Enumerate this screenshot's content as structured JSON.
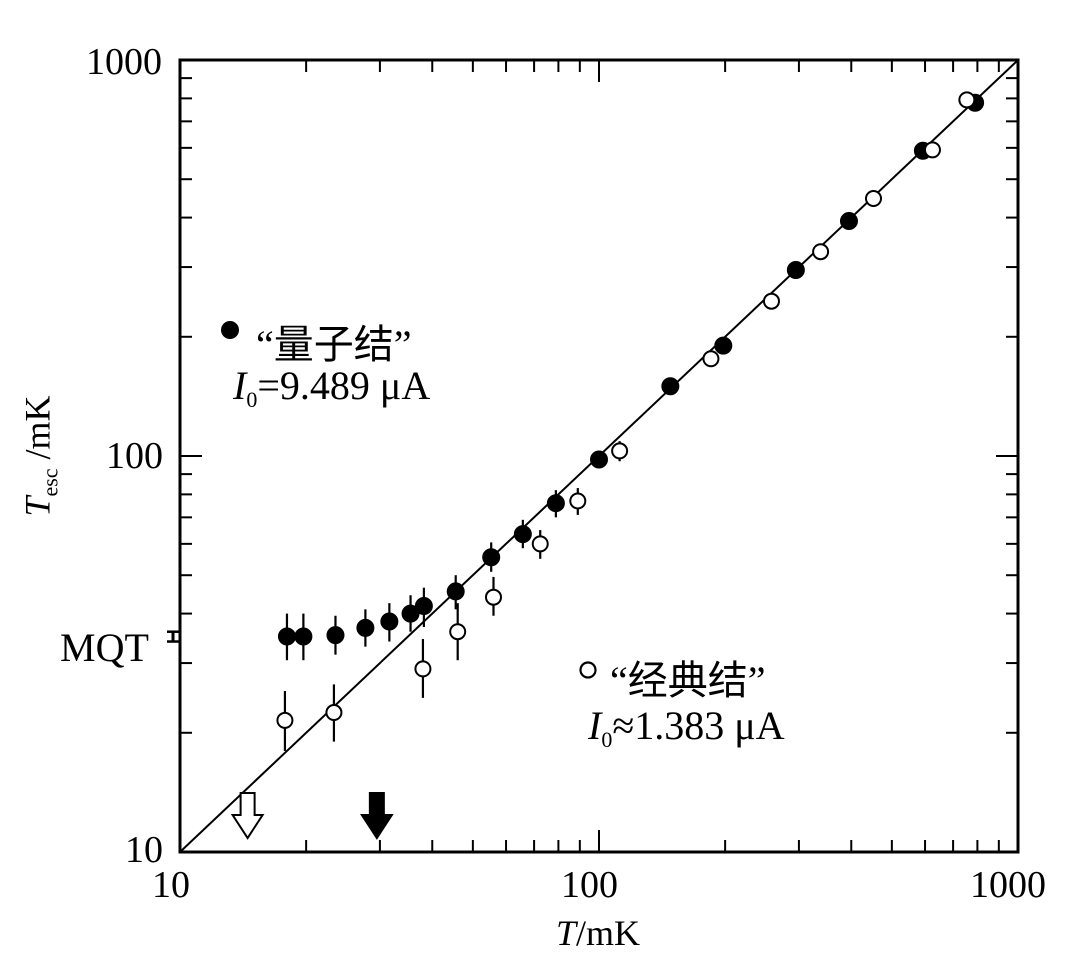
{
  "chart_data": {
    "type": "scatter",
    "xscale": "log",
    "yscale": "log",
    "xlim": [
      10,
      1000
    ],
    "ylim": [
      10,
      1000
    ],
    "xlabel": {
      "italic": "T",
      "rest": "/mK"
    },
    "ylabel": {
      "italic": "T",
      "sub": "esc",
      "rest": " /mK"
    },
    "xticks": [
      "10",
      "100",
      "1000"
    ],
    "yticks": [
      "10",
      "100",
      "1000"
    ],
    "reference_line": {
      "name": "T_esc = T",
      "points": [
        [
          10,
          10
        ],
        [
          1000,
          1000
        ]
      ]
    },
    "series": [
      {
        "name": "“量子结”",
        "marker": "filled-circle",
        "current_label": "I",
        "current_sub": "0",
        "current_value": "=9.489 μA",
        "points": [
          {
            "x": 18.0,
            "y": 35.0,
            "err": [
              30.5,
              40.0
            ]
          },
          {
            "x": 19.7,
            "y": 35.0,
            "err": [
              30.5,
              40.0
            ]
          },
          {
            "x": 23.5,
            "y": 35.3,
            "err": [
              31.5,
              39.5
            ]
          },
          {
            "x": 27.7,
            "y": 36.8,
            "err": [
              33.0,
              41.0
            ]
          },
          {
            "x": 31.6,
            "y": 38.2,
            "err": [
              34.0,
              42.5
            ]
          },
          {
            "x": 35.5,
            "y": 40.0,
            "err": [
              36.0,
              44.5
            ]
          },
          {
            "x": 38.2,
            "y": 41.8,
            "err": [
              37.0,
              46.5
            ]
          },
          {
            "x": 45.5,
            "y": 45.5,
            "err": [
              41.0,
              50.0
            ]
          },
          {
            "x": 55.3,
            "y": 55.5,
            "err": [
              51.0,
              60.5
            ]
          },
          {
            "x": 65.8,
            "y": 63.5,
            "err": [
              58.5,
              69.0
            ]
          },
          {
            "x": 78.9,
            "y": 76.0,
            "err": [
              70.0,
              82.0
            ]
          },
          {
            "x": 100,
            "y": 98,
            "err": [
              94,
              102
            ]
          },
          {
            "x": 148,
            "y": 150,
            "err": [
              144,
              156
            ]
          },
          {
            "x": 198,
            "y": 190,
            "err": [
              184,
              196
            ]
          },
          {
            "x": 295,
            "y": 295,
            "err": [
              288,
              302
            ]
          },
          {
            "x": 395,
            "y": 392,
            "err": [
              384,
              400
            ]
          },
          {
            "x": 593,
            "y": 590,
            "err": [
              580,
              600
            ]
          },
          {
            "x": 790,
            "y": 780,
            "err": [
              770,
              790
            ]
          }
        ]
      },
      {
        "name": "“经典结”",
        "marker": "open-circle",
        "current_label": "I",
        "current_sub": "0",
        "current_value": "≈1.383 μA",
        "points": [
          {
            "x": 17.8,
            "y": 21.5,
            "err": [
              18.0,
              25.5
            ]
          },
          {
            "x": 23.3,
            "y": 22.5,
            "err": [
              19.0,
              26.5
            ]
          },
          {
            "x": 38.0,
            "y": 29.0,
            "err": [
              24.5,
              34.5
            ]
          },
          {
            "x": 46.0,
            "y": 36.0,
            "err": [
              30.5,
              42.5
            ]
          },
          {
            "x": 56.0,
            "y": 44.0,
            "err": [
              39.5,
              49.5
            ]
          },
          {
            "x": 72.4,
            "y": 60.0,
            "err": [
              55.0,
              65.0
            ]
          },
          {
            "x": 89.0,
            "y": 77.0,
            "err": [
              71.0,
              83.0
            ]
          },
          {
            "x": 112,
            "y": 103,
            "err": [
              97,
              109
            ]
          },
          {
            "x": 185,
            "y": 176,
            "err": [
              170,
              182
            ]
          },
          {
            "x": 258,
            "y": 246,
            "err": [
              239,
              253
            ]
          },
          {
            "x": 338,
            "y": 328,
            "err": [
              320,
              336
            ]
          },
          {
            "x": 452,
            "y": 447,
            "err": [
              437,
              457
            ]
          },
          {
            "x": 625,
            "y": 593,
            "err": [
              583,
              603
            ]
          },
          {
            "x": 755,
            "y": 793,
            "err": [
              783,
              803
            ]
          }
        ]
      }
    ],
    "annotations": [
      {
        "text": "MQT",
        "y": 35.0,
        "err": [
          34.0,
          36.0
        ]
      },
      {
        "marker": "open-arrow-down",
        "x": 14.5
      },
      {
        "marker": "filled-arrow-down",
        "x": 29.5
      }
    ]
  }
}
